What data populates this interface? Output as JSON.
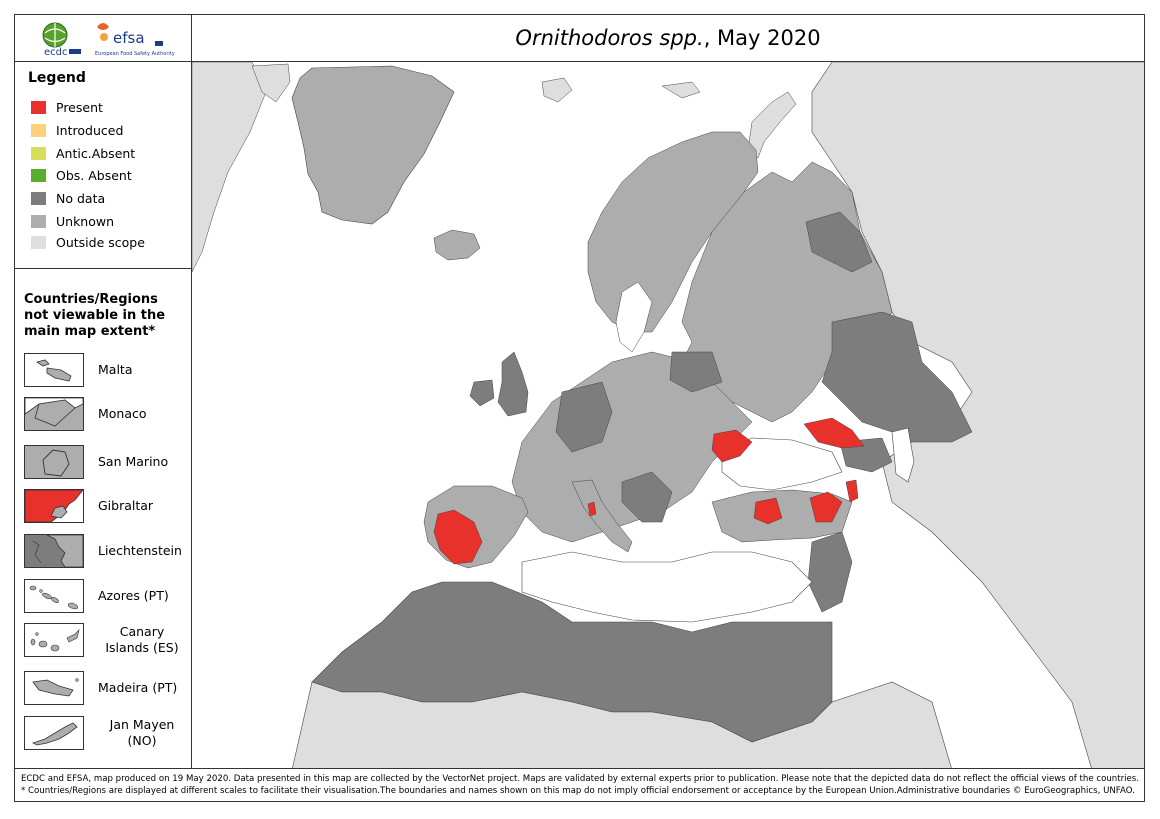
{
  "header": {
    "title_italic": "Ornithodoros spp.",
    "title_rest": ", May 2020",
    "logo_left": "ecdc",
    "logo_right": "efsa",
    "logo_right_caption": "European Food Safety Authority"
  },
  "legend": {
    "title": "Legend",
    "items": [
      {
        "label": "Present",
        "color": "#e8312b"
      },
      {
        "label": "Introduced",
        "color": "#fdd17a"
      },
      {
        "label": "Antic.Absent",
        "color": "#d7df5a"
      },
      {
        "label": "Obs. Absent",
        "color": "#58ad2c"
      },
      {
        "label": "No data",
        "color": "#7d7d7d"
      },
      {
        "label": "Unknown",
        "color": "#adadad"
      },
      {
        "label": "Outside scope",
        "color": "#dedede"
      }
    ]
  },
  "regions_panel": {
    "title": "Countries/Regions not viewable in the main map extent*",
    "items": [
      {
        "label": "Malta",
        "icon": "malta-inset"
      },
      {
        "label": "Monaco",
        "icon": "monaco-inset"
      },
      {
        "label": "San Marino",
        "icon": "san-marino-inset"
      },
      {
        "label": "Gibraltar",
        "icon": "gibraltar-inset"
      },
      {
        "label": "Liechtenstein",
        "icon": "liechtenstein-inset"
      },
      {
        "label": "Azores (PT)",
        "icon": "azores-inset"
      },
      {
        "label": "Canary Islands (ES)",
        "icon": "canary-islands-inset"
      },
      {
        "label": "Madeira (PT)",
        "icon": "madeira-inset"
      },
      {
        "label": "Jan Mayen (NO)",
        "icon": "jan-mayen-inset"
      }
    ]
  },
  "footer": {
    "line1": "ECDC and EFSA, map produced on 19 May 2020. Data presented in this map are collected by the VectorNet project. Maps are validated by external experts prior to publication. Please note that the depicted data do not reflect the official views of the countries.",
    "line2": "* Countries/Regions are displayed at different scales to facilitate their visualisation.The boundaries and names shown on this map do not imply official endorsement or acceptance by the European Union.Administrative boundaries © EuroGeographics, UNFAO."
  },
  "map_colors": {
    "present": "#e8312b",
    "no_data": "#7d7d7d",
    "unknown": "#adadad",
    "outside": "#dedede",
    "sea": "#ffffff"
  }
}
